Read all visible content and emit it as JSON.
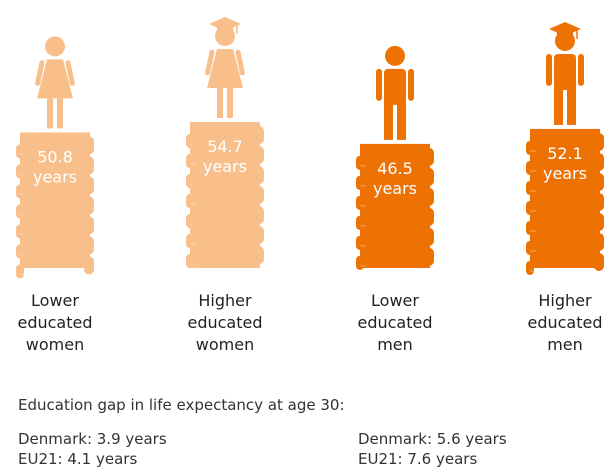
{
  "chart_data": {
    "type": "bar",
    "unit": "years",
    "categories": [
      "Lower educated women",
      "Higher educated women",
      "Lower educated men",
      "Higher educated men"
    ],
    "values": [
      50.8,
      54.7,
      46.5,
      52.1
    ],
    "colors": [
      "#f9bf8a",
      "#f9bf8a",
      "#ee7203",
      "#ee7203"
    ]
  },
  "footer": {
    "title": "Education gap in life expectancy at age 30:",
    "groups": [
      [
        "Denmark: 3.9 years",
        "EU21: 4.1 years"
      ],
      [
        "Denmark: 5.6 years",
        "EU21: 7.6 years"
      ]
    ]
  }
}
